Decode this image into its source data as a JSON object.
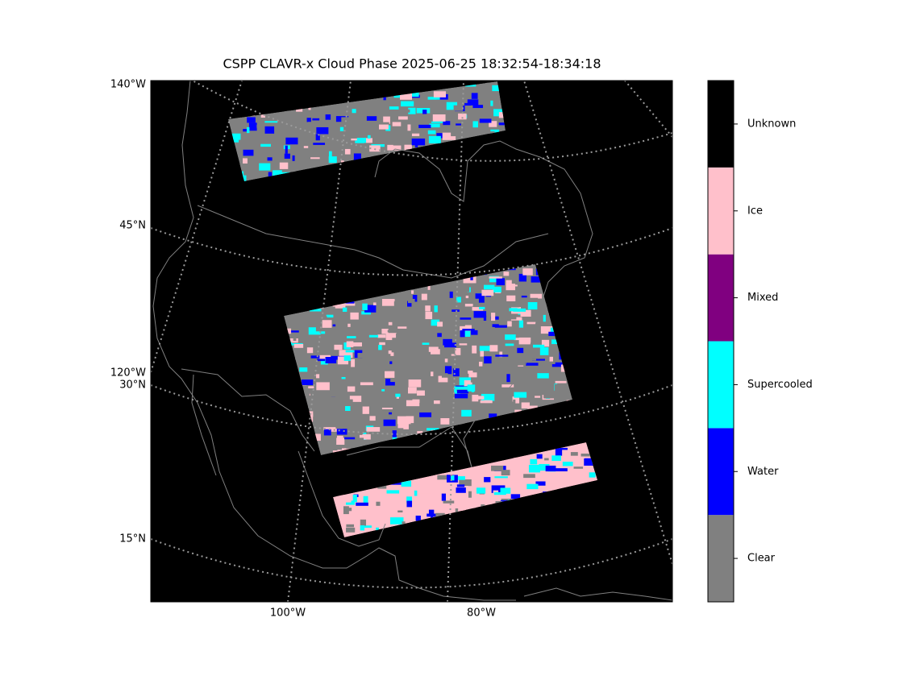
{
  "title": "CSPP CLAVR-x Cloud Phase 2025-06-25 18:32:54-18:34:18",
  "map": {
    "left_labels": [
      "140°W",
      "45°N",
      "120°W",
      "30°N",
      "15°N"
    ],
    "bottom_labels": [
      "100°W",
      "80°W"
    ]
  },
  "colorbar": {
    "categories": [
      {
        "name": "Clear",
        "color": "#808080"
      },
      {
        "name": "Water",
        "color": "#0000ff"
      },
      {
        "name": "Supercooled",
        "color": "#00ffff"
      },
      {
        "name": "Mixed",
        "color": "#800080"
      },
      {
        "name": "Ice",
        "color": "#ffc0cb"
      },
      {
        "name": "Unknown",
        "color": "#000000"
      }
    ]
  }
}
